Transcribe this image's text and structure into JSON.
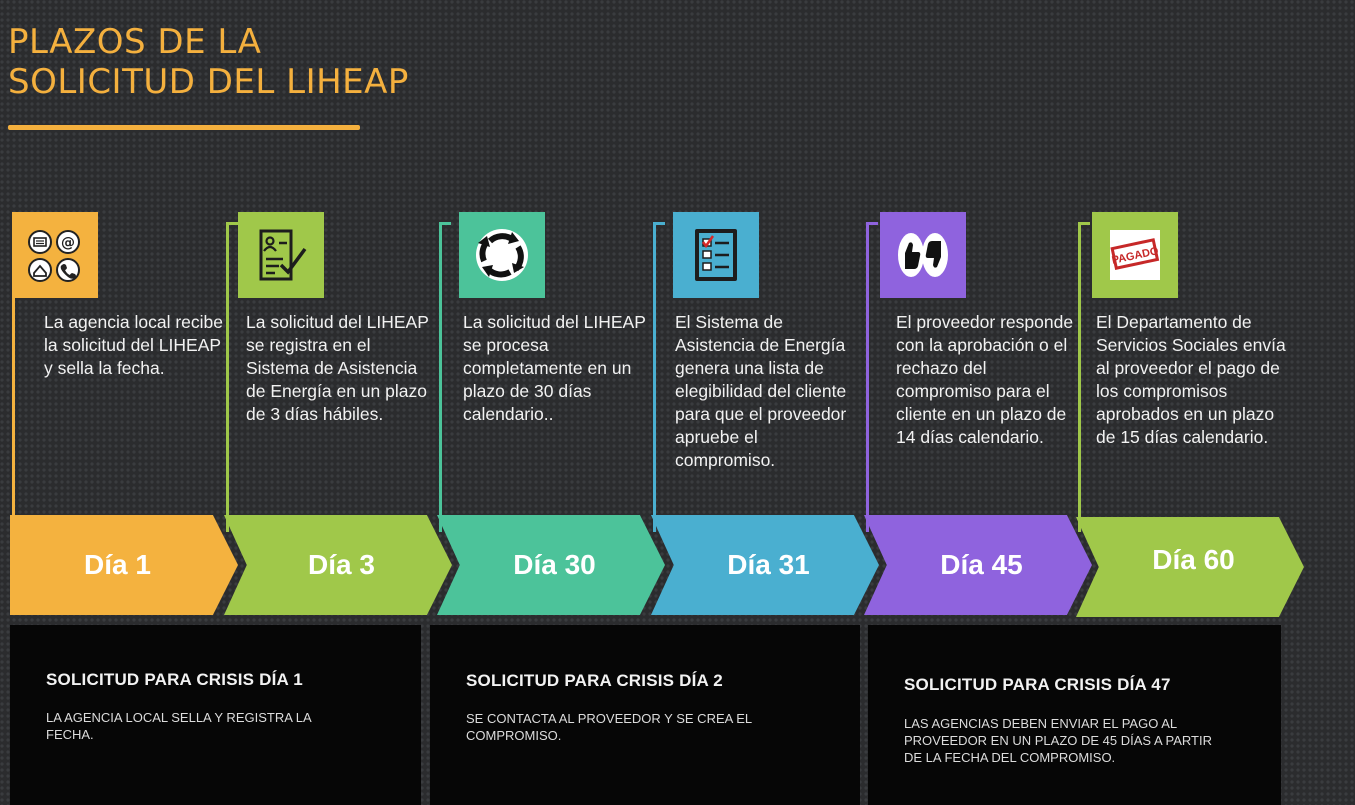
{
  "title": {
    "line1": "PLAZOS DE LA",
    "line2": "SOLICITUD DEL LIHEAP",
    "color": "#f4b03e"
  },
  "steps": [
    {
      "icon": "contact-icons",
      "color": "#f4b23f",
      "description": "La agencia local recibe la solicitud del LIHEAP y sella la fecha.",
      "day_label": "Día 1"
    },
    {
      "icon": "application-form-icon",
      "color": "#a0c84a",
      "description": "La solicitud del LIHEAP se registra en el Sistema de Asistencia de Energía en un plazo de 3 días hábiles.",
      "day_label": "Día 3"
    },
    {
      "icon": "processing-cycle-icon",
      "color": "#4cc39a",
      "description": "La solicitud del LIHEAP se procesa completamente en un plazo de 30 días calendario..",
      "day_label": "Día 30"
    },
    {
      "icon": "checklist-icon",
      "color": "#4aafd0",
      "description": "El Sistema de Asistencia de Energía genera una lista de elegibilidad del cliente para que el proveedor apruebe el compromiso.",
      "day_label": "Día 31"
    },
    {
      "icon": "thumbs-up-down-icon",
      "color": "#8f63de",
      "description": "El proveedor responde con la aprobación o el rechazo del compromiso para el cliente en un plazo de 14 días calendario.",
      "day_label": "Día 45"
    },
    {
      "icon": "paid-stamp-icon",
      "color": "#a0c84a",
      "stamp_text": "PAGADO",
      "description": "El Departamento de Servicios Sociales envía al proveedor el pago de los compromisos aprobados en un plazo de 15 días calendario.",
      "day_label": "Día 60"
    }
  ],
  "crisis_cards": [
    {
      "title": "SOLICITUD PARA CRISIS DÍA 1",
      "text": "La agencia local sella y registra la fecha."
    },
    {
      "title": "SOLICITUD PARA CRISIS DÍA 2",
      "text": "Se contacta al proveedor y se crea el compromiso."
    },
    {
      "title": "SOLICITUD PARA CRISIS DÍA 47",
      "text": "Las agencias deben enviar el pago al proveedor en un plazo de 45 días a partir de la fecha del compromiso."
    }
  ]
}
